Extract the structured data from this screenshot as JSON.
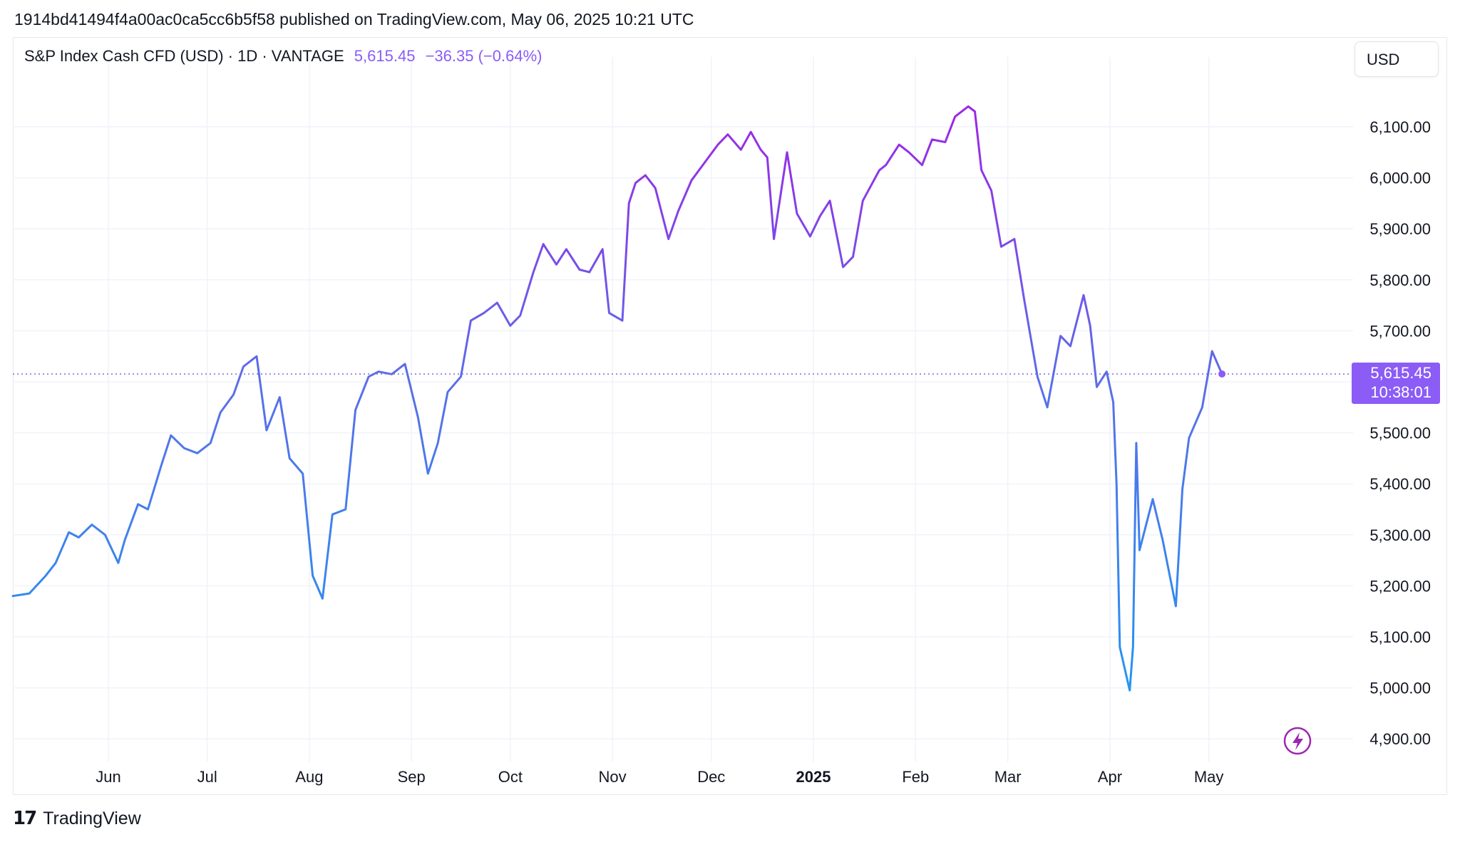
{
  "header": {
    "published_text": "1914bd41494f4a00ac0ca5cc6b5f58 published on TradingView.com, May 06, 2025 10:21 UTC"
  },
  "legend": {
    "symbol": "S&P Index Cash CFD (USD) · 1D · VANTAGE",
    "last": "5,615.45",
    "change": "−36.35 (−0.64%)"
  },
  "toolbar": {
    "currency_label": "USD"
  },
  "price_tag": {
    "value": "5,615.45",
    "countdown": "10:38:01"
  },
  "footer": {
    "brand": "TradingView",
    "logo_glyph": "17"
  },
  "colors": {
    "line_gradient": [
      "#2196f3",
      "#5b6ee8",
      "#9c27e6"
    ],
    "accent": "#8b5cf6",
    "price_tag_bg": "#8b5cf6",
    "grid": "#f0f3fa",
    "axis_text": "#131722"
  },
  "icons": {
    "flash": "lightning-bolt-circle-icon"
  },
  "chart_data": {
    "type": "line",
    "title": "S&P Index Cash CFD (USD)",
    "interval": "1D",
    "exchange": "VANTAGE",
    "ylim": [
      4850,
      6160
    ],
    "yticks": [
      "4,900.00",
      "5,000.00",
      "5,100.00",
      "5,200.00",
      "5,300.00",
      "5,400.00",
      "5,500.00",
      "5,600.00",
      "5,700.00",
      "5,800.00",
      "5,900.00",
      "6,000.00",
      "6,100.00"
    ],
    "ytick_values": [
      4900,
      5000,
      5100,
      5200,
      5300,
      5400,
      5500,
      5600,
      5700,
      5800,
      5900,
      6000,
      6100
    ],
    "xticks": [
      {
        "label": "Jun",
        "date": "2024-06-01",
        "bold": false
      },
      {
        "label": "Jul",
        "date": "2024-07-01",
        "bold": false
      },
      {
        "label": "Aug",
        "date": "2024-08-01",
        "bold": false
      },
      {
        "label": "Sep",
        "date": "2024-09-01",
        "bold": false
      },
      {
        "label": "Oct",
        "date": "2024-10-01",
        "bold": false
      },
      {
        "label": "Nov",
        "date": "2024-11-01",
        "bold": false
      },
      {
        "label": "Dec",
        "date": "2024-12-01",
        "bold": false
      },
      {
        "label": "2025",
        "date": "2025-01-01",
        "bold": true
      },
      {
        "label": "Feb",
        "date": "2025-02-01",
        "bold": false
      },
      {
        "label": "Mar",
        "date": "2025-03-01",
        "bold": false
      },
      {
        "label": "Apr",
        "date": "2025-04-01",
        "bold": false
      },
      {
        "label": "May",
        "date": "2025-05-01",
        "bold": false
      }
    ],
    "x_range": [
      "2024-05-03",
      "2025-05-29"
    ],
    "last_price": 5615.45,
    "series": [
      {
        "x": [
          "2024-05-03",
          "2024-05-08",
          "2024-05-13",
          "2024-05-16",
          "2024-05-20",
          "2024-05-23",
          "2024-05-27",
          "2024-05-31",
          "2024-06-04",
          "2024-06-06",
          "2024-06-10",
          "2024-06-13",
          "2024-06-17",
          "2024-06-20",
          "2024-06-24",
          "2024-06-28",
          "2024-07-02",
          "2024-07-05",
          "2024-07-09",
          "2024-07-12",
          "2024-07-16",
          "2024-07-19",
          "2024-07-23",
          "2024-07-26",
          "2024-07-30",
          "2024-08-02",
          "2024-08-05",
          "2024-08-08",
          "2024-08-12",
          "2024-08-15",
          "2024-08-19",
          "2024-08-22",
          "2024-08-26",
          "2024-08-30",
          "2024-09-03",
          "2024-09-06",
          "2024-09-09",
          "2024-09-12",
          "2024-09-16",
          "2024-09-19",
          "2024-09-23",
          "2024-09-27",
          "2024-10-01",
          "2024-10-04",
          "2024-10-08",
          "2024-10-11",
          "2024-10-15",
          "2024-10-18",
          "2024-10-22",
          "2024-10-25",
          "2024-10-29",
          "2024-10-31",
          "2024-11-04",
          "2024-11-06",
          "2024-11-08",
          "2024-11-11",
          "2024-11-14",
          "2024-11-18",
          "2024-11-21",
          "2024-11-25",
          "2024-11-29",
          "2024-12-03",
          "2024-12-06",
          "2024-12-10",
          "2024-12-13",
          "2024-12-16",
          "2024-12-18",
          "2024-12-20",
          "2024-12-24",
          "2024-12-27",
          "2024-12-31",
          "2025-01-03",
          "2025-01-06",
          "2025-01-10",
          "2025-01-13",
          "2025-01-16",
          "2025-01-21",
          "2025-01-23",
          "2025-01-27",
          "2025-01-30",
          "2025-02-03",
          "2025-02-06",
          "2025-02-10",
          "2025-02-13",
          "2025-02-17",
          "2025-02-19",
          "2025-02-21",
          "2025-02-24",
          "2025-02-27",
          "2025-03-03",
          "2025-03-06",
          "2025-03-10",
          "2025-03-13",
          "2025-03-17",
          "2025-03-20",
          "2025-03-24",
          "2025-03-26",
          "2025-03-28",
          "2025-03-31",
          "2025-04-02",
          "2025-04-03",
          "2025-04-04",
          "2025-04-07",
          "2025-04-08",
          "2025-04-09",
          "2025-04-10",
          "2025-04-14",
          "2025-04-17",
          "2025-04-21",
          "2025-04-23",
          "2025-04-25",
          "2025-04-29",
          "2025-05-02",
          "2025-05-05"
        ],
        "y": [
          5180,
          5185,
          5220,
          5245,
          5305,
          5295,
          5320,
          5300,
          5245,
          5290,
          5360,
          5350,
          5435,
          5495,
          5470,
          5460,
          5480,
          5540,
          5575,
          5630,
          5650,
          5505,
          5570,
          5450,
          5420,
          5220,
          5175,
          5340,
          5350,
          5545,
          5610,
          5620,
          5615,
          5635,
          5530,
          5420,
          5480,
          5580,
          5610,
          5720,
          5735,
          5755,
          5710,
          5730,
          5815,
          5870,
          5830,
          5860,
          5820,
          5815,
          5860,
          5735,
          5720,
          5950,
          5990,
          6005,
          5980,
          5880,
          5935,
          5995,
          6030,
          6065,
          6085,
          6055,
          6090,
          6055,
          6040,
          5880,
          6050,
          5930,
          5885,
          5925,
          5955,
          5825,
          5845,
          5955,
          6015,
          6025,
          6065,
          6050,
          6025,
          6075,
          6070,
          6120,
          6140,
          6130,
          6015,
          5975,
          5865,
          5880,
          5760,
          5610,
          5550,
          5690,
          5670,
          5770,
          5710,
          5590,
          5620,
          5560,
          5400,
          5080,
          4995,
          5080,
          5480,
          5270,
          5370,
          5290,
          5160,
          5390,
          5490,
          5550,
          5660,
          5615.45
        ]
      }
    ]
  }
}
